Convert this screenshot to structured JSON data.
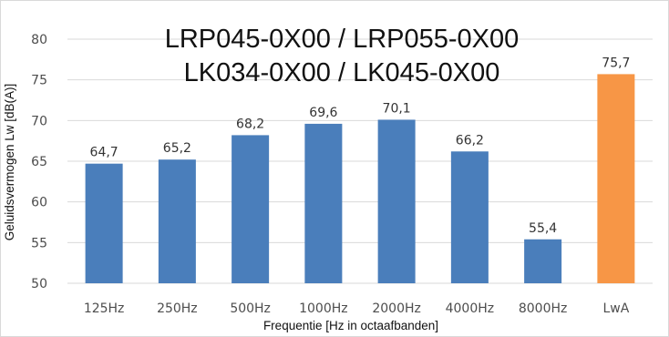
{
  "chart_data": {
    "type": "bar",
    "title_lines": [
      "LRP045-0X00 / LRP055-0X00",
      "LK034-0X00 / LK045-0X00"
    ],
    "xlabel": "Frequentie [Hz in octaafbanden]",
    "ylabel": "Geluidsvermogen Lw [dB(A)]",
    "ylim": [
      50,
      80
    ],
    "yticks": [
      50,
      55,
      60,
      65,
      70,
      75,
      80
    ],
    "grid": true,
    "legend": "none",
    "categories": [
      "125Hz",
      "250Hz",
      "500Hz",
      "1000Hz",
      "2000Hz",
      "4000Hz",
      "8000Hz",
      "LwA"
    ],
    "values": [
      64.7,
      65.2,
      68.2,
      69.6,
      70.1,
      66.2,
      55.4,
      75.7
    ],
    "value_labels": [
      "64,7",
      "65,2",
      "68,2",
      "69,6",
      "70,1",
      "66,2",
      "55,4",
      "75,7"
    ],
    "bar_colors": [
      "#4a7ebb",
      "#4a7ebb",
      "#4a7ebb",
      "#4a7ebb",
      "#4a7ebb",
      "#4a7ebb",
      "#4a7ebb",
      "#f79646"
    ],
    "grid_color": "#d9d9d9",
    "border_color": "#d9d9d9"
  }
}
